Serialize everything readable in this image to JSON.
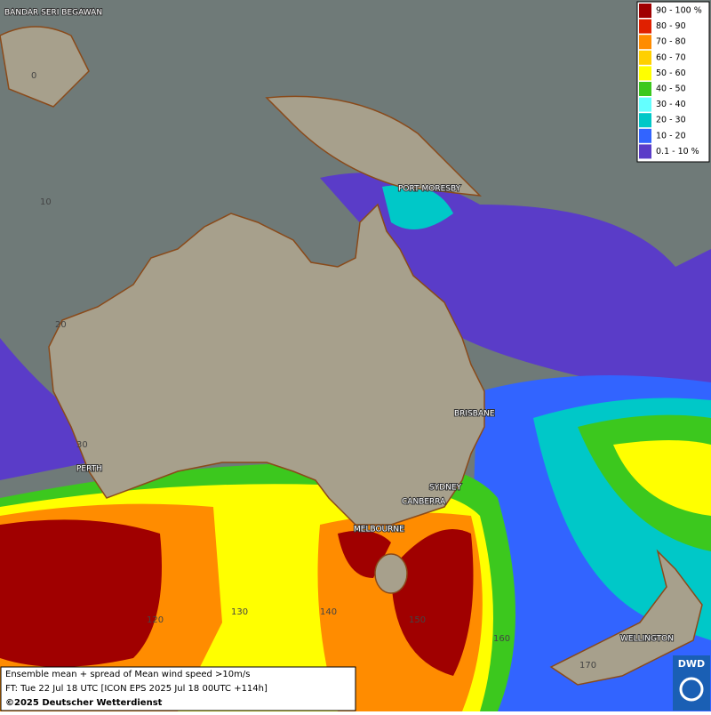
{
  "cities": [
    "BANDAR SERI BEGAWAN",
    "PORT MORESBY",
    "BRISBANE",
    "PERTH",
    "SYDNEY",
    "CANBERRA",
    "MELBOURNE",
    "WELLINGTON"
  ],
  "latitude_labels": [
    0,
    10,
    20,
    30
  ],
  "longitude_labels": [
    120,
    130,
    140,
    150,
    160,
    170
  ],
  "legend": [
    {
      "label": "90 - 100 %",
      "color": "#a00000"
    },
    {
      "label": "80 - 90",
      "color": "#e02000"
    },
    {
      "label": "70 - 80",
      "color": "#ff8c00"
    },
    {
      "label": "60 - 70",
      "color": "#ffd000"
    },
    {
      "label": "50 - 60",
      "color": "#ffff00"
    },
    {
      "label": "40 - 50",
      "color": "#3cc81e"
    },
    {
      "label": "30 - 40",
      "color": "#64ffff"
    },
    {
      "label": "20 - 30",
      "color": "#00c8c8"
    },
    {
      "label": "10 - 20",
      "color": "#3264ff"
    },
    {
      "label": "0.1 - 10 %",
      "color": "#5a3cc8"
    }
  ],
  "footer": [
    "Ensemble mean + spread of Mean wind speed >10m/s",
    "FT: Tue 22 Jul 18 UTC [ICON EPS 2025 Jul 18 00UTC +114h]",
    "©2025 Deutscher Wetterdienst"
  ],
  "logo": "DWD"
}
